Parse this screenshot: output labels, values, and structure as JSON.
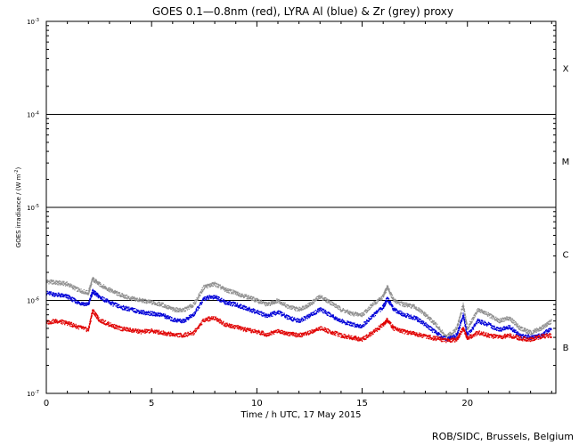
{
  "chart_data": {
    "type": "scatter",
    "title": "GOES 0.1—0.8nm (red), LYRA Al (blue) & Zr (grey) proxy",
    "xlabel": "Time / h UTC, 17 May 2015",
    "ylabel": "GOES irradiance / (W m",
    "ylabel_sup": "-2",
    "ylabel_close": ")",
    "yscale": "log",
    "xlim": [
      0,
      24.2
    ],
    "ylim": [
      1e-07,
      0.001
    ],
    "x_ticks": [
      {
        "value": 0,
        "label": "0"
      },
      {
        "value": 5,
        "label": "5"
      },
      {
        "value": 10,
        "label": "10"
      },
      {
        "value": 15,
        "label": "15"
      },
      {
        "value": 20,
        "label": "20"
      }
    ],
    "y_ticks": [
      {
        "value": 1e-07,
        "base": "10",
        "exp": "-7"
      },
      {
        "value": 1e-06,
        "base": "10",
        "exp": "-6"
      },
      {
        "value": 1e-05,
        "base": "10",
        "exp": "-5"
      },
      {
        "value": 0.0001,
        "base": "10",
        "exp": "-4"
      },
      {
        "value": 0.001,
        "base": "10",
        "exp": "-3"
      }
    ],
    "threshold_lines": [
      0.0001,
      1e-05,
      1e-06
    ],
    "flare_classes": [
      {
        "label": "X",
        "value": 0.000316
      },
      {
        "label": "M",
        "value": 3.16e-05
      },
      {
        "label": "C",
        "value": 3.16e-06
      },
      {
        "label": "B",
        "value": 3.16e-07
      }
    ],
    "colors": {
      "red": "#e00000",
      "blue": "#0000d8",
      "grey": "#909090"
    },
    "series": [
      {
        "color_key": "grey",
        "x": [
          0,
          0.5,
          1.0,
          1.5,
          2.0,
          2.2,
          2.5,
          3.0,
          3.5,
          4.0,
          4.5,
          5.0,
          5.5,
          6.0,
          6.5,
          7.0,
          7.5,
          8.0,
          8.5,
          9.0,
          9.5,
          10.0,
          10.5,
          11.0,
          11.5,
          12.0,
          12.5,
          13.0,
          13.5,
          14.0,
          14.5,
          15.0,
          15.5,
          16.0,
          16.2,
          16.5,
          17.0,
          17.5,
          18.0,
          18.5,
          19.0,
          19.5,
          19.8,
          20.0,
          20.5,
          21.0,
          21.5,
          22.0,
          22.5,
          23.0,
          23.5,
          24.0
        ],
        "y": [
          1.6e-06,
          1.55e-06,
          1.5e-06,
          1.3e-06,
          1.2e-06,
          1.7e-06,
          1.5e-06,
          1.3e-06,
          1.15e-06,
          1.05e-06,
          1e-06,
          9.5e-07,
          9e-07,
          8e-07,
          7.8e-07,
          9e-07,
          1.4e-06,
          1.5e-06,
          1.3e-06,
          1.2e-06,
          1.1e-06,
          1e-06,
          9e-07,
          1e-06,
          8.5e-07,
          8e-07,
          9e-07,
          1.1e-06,
          9.5e-07,
          8e-07,
          7.2e-07,
          7e-07,
          9e-07,
          1.1e-06,
          1.4e-06,
          1e-06,
          9e-07,
          8.5e-07,
          7e-07,
          5.5e-07,
          4e-07,
          5e-07,
          9e-07,
          5e-07,
          8e-07,
          7e-07,
          6e-07,
          6.5e-07,
          5e-07,
          4.5e-07,
          5e-07,
          6e-07
        ]
      },
      {
        "color_key": "blue",
        "x": [
          0,
          0.5,
          1.0,
          1.5,
          2.0,
          2.2,
          2.5,
          3.0,
          3.5,
          4.0,
          4.5,
          5.0,
          5.5,
          6.0,
          6.5,
          7.0,
          7.5,
          8.0,
          8.5,
          9.0,
          9.5,
          10.0,
          10.5,
          11.0,
          11.5,
          12.0,
          12.5,
          13.0,
          13.5,
          14.0,
          14.5,
          15.0,
          15.5,
          16.0,
          16.2,
          16.5,
          17.0,
          17.5,
          18.0,
          18.5,
          19.0,
          19.5,
          19.8,
          20.0,
          20.5,
          21.0,
          21.5,
          22.0,
          22.5,
          23.0,
          23.5,
          24.0
        ],
        "y": [
          1.2e-06,
          1.15e-06,
          1.1e-06,
          9.5e-07,
          9e-07,
          1.25e-06,
          1.1e-06,
          9.5e-07,
          8.5e-07,
          8e-07,
          7.5e-07,
          7.2e-07,
          7e-07,
          6.2e-07,
          6e-07,
          7e-07,
          1.05e-06,
          1.1e-06,
          9.5e-07,
          9e-07,
          8.2e-07,
          7.5e-07,
          6.8e-07,
          7.5e-07,
          6.5e-07,
          6e-07,
          6.8e-07,
          8e-07,
          7e-07,
          6e-07,
          5.5e-07,
          5.3e-07,
          6.8e-07,
          8.5e-07,
          1.05e-06,
          8e-07,
          7e-07,
          6.5e-07,
          5.5e-07,
          4.5e-07,
          3.8e-07,
          4.2e-07,
          7e-07,
          4.2e-07,
          6e-07,
          5.5e-07,
          4.8e-07,
          5.2e-07,
          4.2e-07,
          4e-07,
          4.2e-07,
          5e-07
        ]
      },
      {
        "color_key": "red",
        "x": [
          0,
          0.5,
          1.0,
          1.5,
          2.0,
          2.2,
          2.5,
          3.0,
          3.5,
          4.0,
          4.5,
          5.0,
          5.5,
          6.0,
          6.5,
          7.0,
          7.5,
          8.0,
          8.5,
          9.0,
          9.5,
          10.0,
          10.5,
          11.0,
          11.5,
          12.0,
          12.5,
          13.0,
          13.5,
          14.0,
          14.5,
          15.0,
          15.5,
          16.0,
          16.2,
          16.5,
          17.0,
          17.5,
          18.0,
          18.5,
          19.0,
          19.5,
          19.8,
          20.0,
          20.5,
          21.0,
          21.5,
          22.0,
          22.5,
          23.0,
          23.5,
          24.0
        ],
        "y": [
          5.8e-07,
          6e-07,
          5.7e-07,
          5.2e-07,
          4.8e-07,
          7.8e-07,
          6.2e-07,
          5.5e-07,
          5e-07,
          4.8e-07,
          4.6e-07,
          4.7e-07,
          4.5e-07,
          4.3e-07,
          4.2e-07,
          4.5e-07,
          6.2e-07,
          6.5e-07,
          5.5e-07,
          5.2e-07,
          4.8e-07,
          4.6e-07,
          4.3e-07,
          4.7e-07,
          4.4e-07,
          4.2e-07,
          4.5e-07,
          5e-07,
          4.6e-07,
          4.2e-07,
          4e-07,
          3.8e-07,
          4.5e-07,
          5.5e-07,
          6.2e-07,
          5e-07,
          4.6e-07,
          4.4e-07,
          4.1e-07,
          3.9e-07,
          3.7e-07,
          3.8e-07,
          5e-07,
          3.9e-07,
          4.5e-07,
          4.2e-07,
          4e-07,
          4.2e-07,
          3.9e-07,
          3.8e-07,
          4.1e-07,
          4.2e-07
        ]
      }
    ]
  },
  "footer": {
    "credit": "ROB/SIDC, Brussels, Belgium"
  }
}
